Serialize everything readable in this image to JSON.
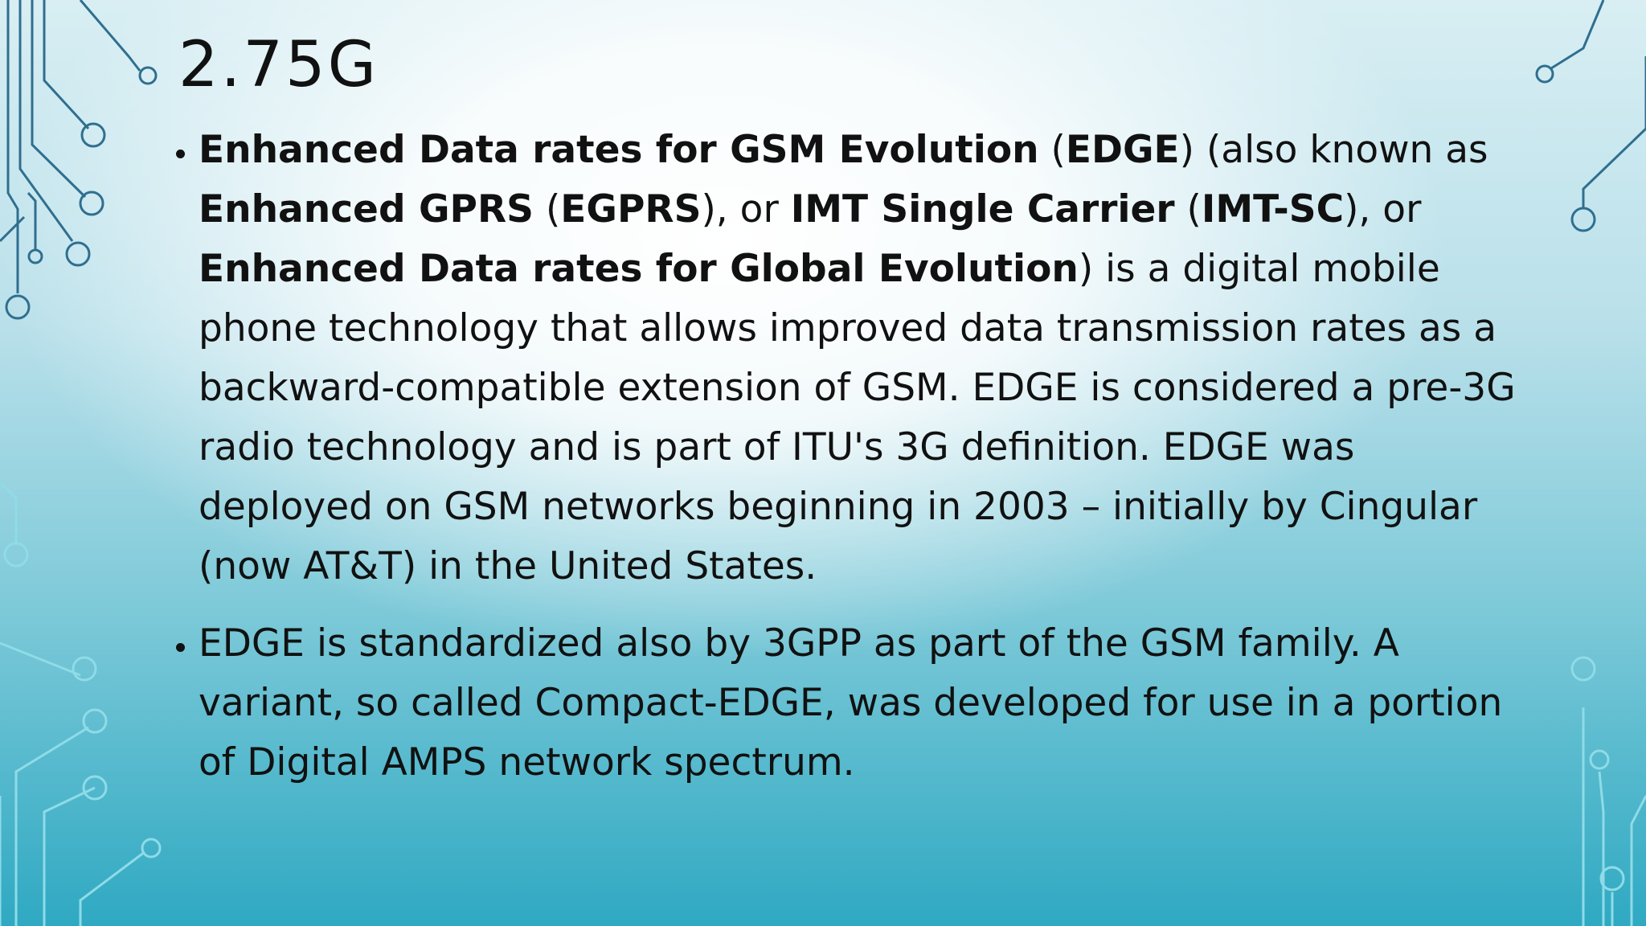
{
  "title": "2.75G",
  "bullets": [
    {
      "runs": [
        {
          "text": "Enhanced Data rates for GSM Evolution",
          "bold": true
        },
        {
          "text": " (",
          "bold": false
        },
        {
          "text": "EDGE",
          "bold": true
        },
        {
          "text": ") (also known as ",
          "bold": false
        },
        {
          "text": "Enhanced GPRS",
          "bold": true
        },
        {
          "text": " (",
          "bold": false
        },
        {
          "text": "EGPRS",
          "bold": true
        },
        {
          "text": "), or ",
          "bold": false
        },
        {
          "text": "IMT Single Carrier",
          "bold": true
        },
        {
          "text": " (",
          "bold": false
        },
        {
          "text": "IMT-SC",
          "bold": true
        },
        {
          "text": "), or ",
          "bold": false
        },
        {
          "text": "Enhanced Data rates for Global Evolution",
          "bold": true
        },
        {
          "text": ") is a digital mobile phone technology that allows improved data transmission rates as a backward-compatible extension of GSM. EDGE is considered a pre-3G radio technology and is part of ITU's 3G definition. EDGE was deployed on GSM networks beginning in 2003 – initially by Cingular (now AT&T) in the United States.",
          "bold": false
        }
      ]
    },
    {
      "runs": [
        {
          "text": "EDGE is standardized also by 3GPP as part of the GSM family. A variant, so called Compact-EDGE, was developed for use in a portion of Digital AMPS network spectrum.",
          "bold": false
        }
      ]
    }
  ]
}
